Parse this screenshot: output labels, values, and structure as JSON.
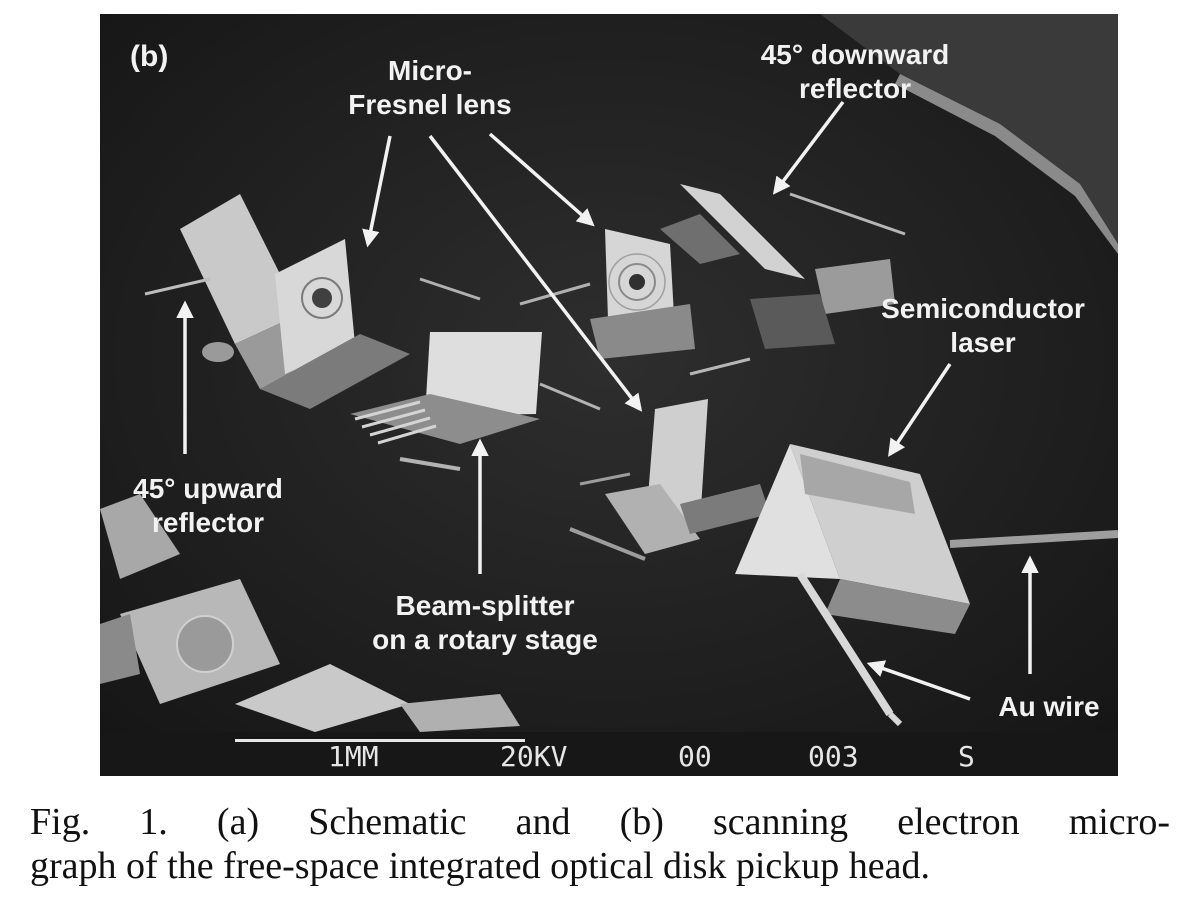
{
  "figure": {
    "panel_tag": "(b)",
    "labels": {
      "micro_fresnel": [
        "Micro-",
        "Fresnel lens"
      ],
      "downward_reflector": [
        "45° downward",
        "reflector"
      ],
      "semiconductor_laser": [
        "Semiconductor",
        "laser"
      ],
      "upward_reflector": [
        "45° upward",
        "reflector"
      ],
      "beam_splitter": [
        "Beam-splitter",
        "on a rotary stage"
      ],
      "au_wire": "Au wire"
    },
    "sem_bar": {
      "scale": "1MM",
      "voltage": "20KV",
      "field1": "00",
      "field2": "003",
      "field3": "S"
    }
  },
  "caption": {
    "line1": "Fig. 1.  (a) Schematic and (b) scanning electron micro-",
    "line2": "graph of the free-space integrated optical disk pickup head."
  }
}
